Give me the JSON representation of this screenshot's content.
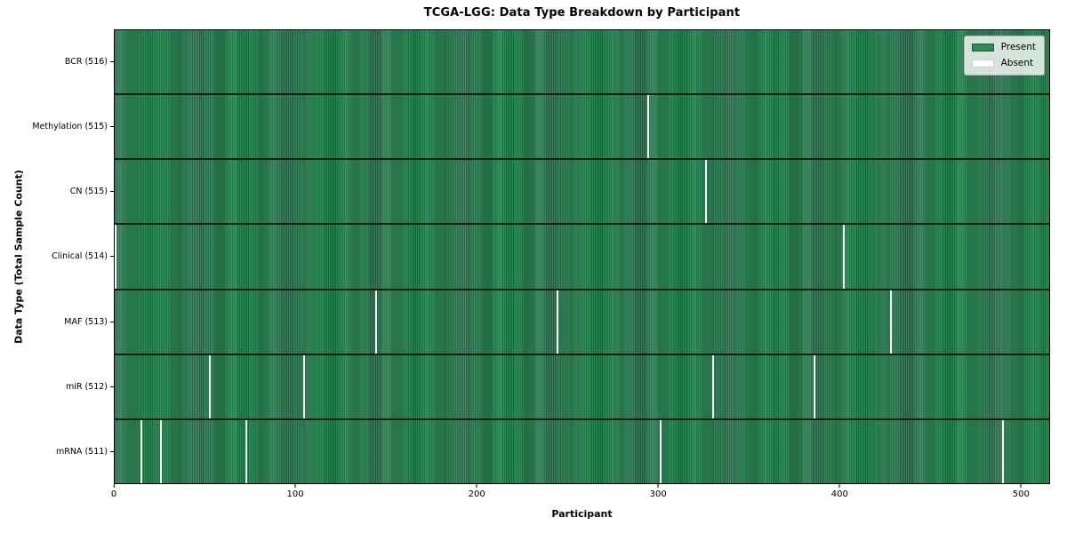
{
  "chart_data": {
    "type": "heatmap",
    "title": "TCGA-LGG: Data Type Breakdown by Participant",
    "xlabel": "Participant",
    "ylabel": "Data Type (Total Sample Count)",
    "x_range": [
      0,
      516
    ],
    "x_ticks": [
      0,
      100,
      200,
      300,
      400,
      500
    ],
    "grid": false,
    "legend_position": "upper right",
    "legend": [
      {
        "label": "Present",
        "color": "#2e8b57"
      },
      {
        "label": "Absent",
        "color": "#ffffff"
      }
    ],
    "rows": [
      {
        "label": "BCR (516)",
        "data_type": "BCR",
        "total_samples": 516,
        "absent_participants": []
      },
      {
        "label": "Methylation (515)",
        "data_type": "Methylation",
        "total_samples": 515,
        "absent_participants": [
          294
        ]
      },
      {
        "label": "CN (515)",
        "data_type": "CN",
        "total_samples": 515,
        "absent_participants": [
          326
        ]
      },
      {
        "label": "Clinical (514)",
        "data_type": "Clinical",
        "total_samples": 514,
        "absent_participants": [
          0,
          402
        ]
      },
      {
        "label": "MAF (513)",
        "data_type": "MAF",
        "total_samples": 513,
        "absent_participants": [
          144,
          244,
          428
        ]
      },
      {
        "label": "miR (512)",
        "data_type": "miR",
        "total_samples": 512,
        "absent_participants": [
          52,
          104,
          330,
          386
        ]
      },
      {
        "label": "mRNA (511)",
        "data_type": "mRNA",
        "total_samples": 511,
        "absent_participants": [
          14,
          25,
          72,
          301,
          490
        ]
      }
    ],
    "colors": {
      "present": "#2e8b57",
      "present_edge": "#1f5f40",
      "absent": "#fcfcfa",
      "row_divider": "#0a1f12",
      "axis": "#000000"
    }
  }
}
